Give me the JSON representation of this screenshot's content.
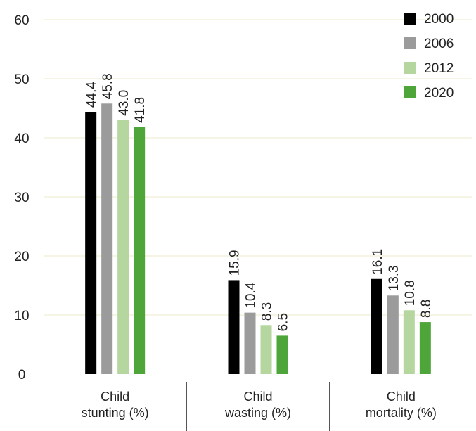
{
  "chart_data": {
    "type": "bar",
    "categories": [
      [
        "Child",
        "stunting (%)"
      ],
      [
        "Child",
        "wasting (%)"
      ],
      [
        "Child",
        "mortality (%)"
      ]
    ],
    "series": [
      {
        "name": "2000",
        "color": "#000000",
        "values": [
          44.4,
          15.9,
          16.1
        ],
        "labels": [
          "44.4",
          "15.9",
          "16.1"
        ]
      },
      {
        "name": "2006",
        "color": "#9b9b9b",
        "values": [
          45.8,
          10.4,
          13.3
        ],
        "labels": [
          "45.8",
          "10.4",
          "13.3"
        ]
      },
      {
        "name": "2012",
        "color": "#b5d69e",
        "values": [
          43.0,
          8.3,
          10.8
        ],
        "labels": [
          "43.0",
          "8.3",
          "10.8"
        ]
      },
      {
        "name": "2020",
        "color": "#4ea63a",
        "values": [
          41.8,
          6.5,
          8.8
        ],
        "labels": [
          "41.8",
          "6.5",
          "8.8"
        ]
      }
    ],
    "ylim": [
      0,
      60
    ],
    "yticks": [
      0,
      10,
      20,
      30,
      40,
      50,
      60
    ],
    "grid": true,
    "legend": "top-right",
    "title": "",
    "xlabel": "",
    "ylabel": ""
  }
}
